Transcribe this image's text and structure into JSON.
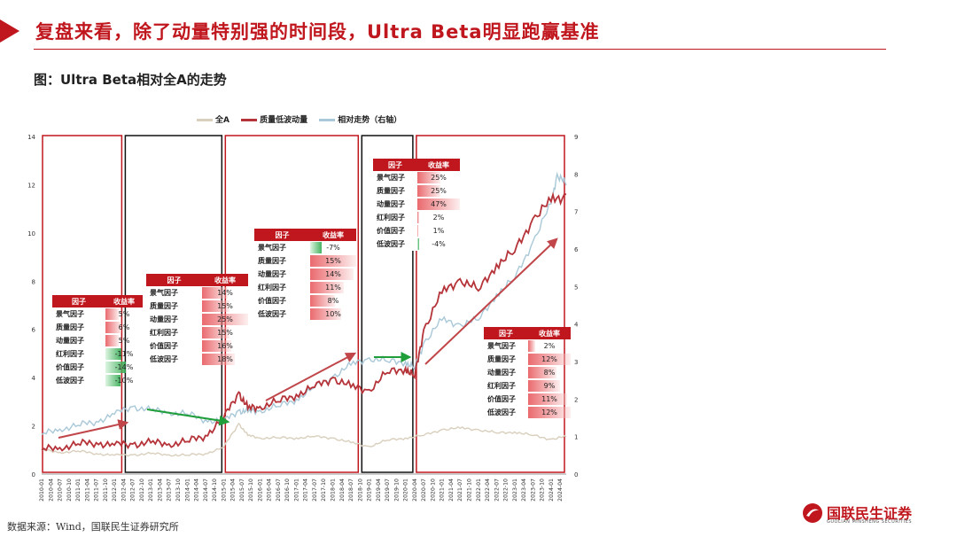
{
  "header": {
    "title": "复盘来看，除了动量特别强的时间段，Ultra Beta明显跑赢基准"
  },
  "figure": {
    "title": "图：Ultra Beta相对全A的走势"
  },
  "source": "数据来源：Wind，国联民生证券研究所",
  "logo": {
    "cn": "国联民生证券",
    "en": "GUOLIAN MINSHENG SECURITIES"
  },
  "colors": {
    "accent": "#c0161d",
    "quality": "#b5343a",
    "allA": "#d9cfbd",
    "relative": "#a9c8d8",
    "arrow_red": "#c0464a",
    "arrow_green": "#1f9e3a"
  },
  "chart_data": {
    "type": "line",
    "title": "",
    "series": [
      {
        "name": "全A",
        "axis": "left",
        "x": [
          "2010-01",
          "2010-07",
          "2011-01",
          "2011-07",
          "2012-01",
          "2012-07",
          "2013-01",
          "2013-07",
          "2014-01",
          "2014-07",
          "2015-01",
          "2015-06",
          "2015-09",
          "2016-01",
          "2016-07",
          "2017-01",
          "2017-07",
          "2018-01",
          "2018-07",
          "2019-01",
          "2019-07",
          "2020-01",
          "2020-07",
          "2021-01",
          "2021-07",
          "2022-01",
          "2022-07",
          "2023-01",
          "2023-07",
          "2024-01",
          "2024-06"
        ],
        "values": [
          1.0,
          0.9,
          0.95,
          0.85,
          0.78,
          0.8,
          0.85,
          0.8,
          0.78,
          0.85,
          1.1,
          2.1,
          1.6,
          1.5,
          1.5,
          1.5,
          1.55,
          1.5,
          1.3,
          1.15,
          1.4,
          1.5,
          1.6,
          1.85,
          1.9,
          1.85,
          1.7,
          1.75,
          1.6,
          1.45,
          1.55
        ]
      },
      {
        "name": "质量低波动量",
        "axis": "left",
        "x": [
          "2010-01",
          "2010-07",
          "2011-01",
          "2011-07",
          "2012-01",
          "2012-07",
          "2013-01",
          "2013-07",
          "2014-01",
          "2014-07",
          "2015-01",
          "2015-06",
          "2015-09",
          "2016-01",
          "2016-07",
          "2017-01",
          "2017-07",
          "2018-01",
          "2018-07",
          "2019-01",
          "2019-07",
          "2020-01",
          "2020-04",
          "2020-07",
          "2021-01",
          "2021-07",
          "2022-01",
          "2022-07",
          "2023-01",
          "2023-07",
          "2024-01",
          "2024-06"
        ],
        "values": [
          1.0,
          1.1,
          1.25,
          1.3,
          1.2,
          1.25,
          1.3,
          1.25,
          1.35,
          1.6,
          2.3,
          3.4,
          2.7,
          2.8,
          3.0,
          3.3,
          3.6,
          4.0,
          3.6,
          3.5,
          4.2,
          4.4,
          4.0,
          6.0,
          7.5,
          8.1,
          7.6,
          8.7,
          9.2,
          10.6,
          11.3,
          11.6
        ]
      },
      {
        "name": "相对走势（右轴）",
        "axis": "right",
        "x": [
          "2010-01",
          "2010-07",
          "2011-01",
          "2011-07",
          "2012-01",
          "2012-07",
          "2013-01",
          "2013-07",
          "2014-01",
          "2014-07",
          "2015-01",
          "2015-06",
          "2015-09",
          "2016-01",
          "2016-07",
          "2017-01",
          "2017-07",
          "2018-01",
          "2018-07",
          "2019-01",
          "2019-07",
          "2020-01",
          "2020-04",
          "2020-07",
          "2021-01",
          "2021-07",
          "2022-01",
          "2022-07",
          "2023-01",
          "2023-07",
          "2024-01",
          "2024-03",
          "2024-06"
        ],
        "values": [
          1.05,
          1.2,
          1.3,
          1.4,
          1.6,
          1.8,
          1.7,
          1.65,
          1.6,
          1.45,
          1.4,
          1.7,
          1.65,
          1.7,
          1.8,
          2.0,
          2.3,
          2.6,
          2.9,
          3.1,
          3.0,
          3.0,
          2.8,
          3.5,
          4.1,
          4.0,
          4.1,
          4.8,
          5.2,
          6.2,
          7.2,
          8.0,
          7.7
        ]
      }
    ],
    "yleft": {
      "min": 0,
      "max": 14,
      "ticks": [
        "0",
        "2",
        "4",
        "6",
        "8",
        "10",
        "12",
        "14"
      ]
    },
    "yright": {
      "min": 0,
      "max": 9,
      "ticks": [
        "0",
        "1",
        "2",
        "3",
        "4",
        "5",
        "6",
        "7",
        "8",
        "9"
      ]
    },
    "xticks": [
      "2010-01",
      "2010-04",
      "2010-07",
      "2010-10",
      "2011-01",
      "2011-04",
      "2011-07",
      "2011-10",
      "2012-01",
      "2012-04",
      "2012-07",
      "2012-10",
      "2013-01",
      "2013-04",
      "2013-07",
      "2013-10",
      "2014-01",
      "2014-04",
      "2014-07",
      "2014-10",
      "2015-01",
      "2015-04",
      "2015-07",
      "2015-10",
      "2016-01",
      "2016-04",
      "2016-07",
      "2016-10",
      "2017-01",
      "2017-04",
      "2017-07",
      "2017-10",
      "2018-01",
      "2018-04",
      "2018-07",
      "2018-10",
      "2019-01",
      "2019-04",
      "2019-07",
      "2019-10",
      "2020-01",
      "2020-04",
      "2020-07",
      "2020-10",
      "2021-01",
      "2021-04",
      "2021-07",
      "2021-10",
      "2022-01",
      "2022-04",
      "2022-07",
      "2022-10",
      "2023-01",
      "2023-04",
      "2023-07",
      "2023-10",
      "2024-01",
      "2024-04"
    ],
    "legend": {
      "position": "top",
      "entries": [
        "全A",
        "质量低波动量",
        "相对走势（右轴）"
      ]
    },
    "periods": [
      {
        "start": "2010-01",
        "end": "2012-04",
        "frame": "red"
      },
      {
        "start": "2012-04",
        "end": "2015-01",
        "frame": "black"
      },
      {
        "start": "2015-01",
        "end": "2018-10",
        "frame": "red"
      },
      {
        "start": "2018-10",
        "end": "2020-04",
        "frame": "black"
      },
      {
        "start": "2020-04",
        "end": "2024-06",
        "frame": "red"
      }
    ],
    "tables": [
      {
        "header": [
          "因子",
          "收益率"
        ],
        "rows": [
          [
            "景气因子",
            "5%"
          ],
          [
            "质量因子",
            "6%"
          ],
          [
            "动量因子",
            "5%"
          ],
          [
            "红利因子",
            "-11%"
          ],
          [
            "价值因子",
            "-14%"
          ],
          [
            "低波因子",
            "-10%"
          ]
        ]
      },
      {
        "header": [
          "因子",
          "收益率"
        ],
        "rows": [
          [
            "景气因子",
            "14%"
          ],
          [
            "质量因子",
            "15%"
          ],
          [
            "动量因子",
            "25%"
          ],
          [
            "红利因子",
            "15%"
          ],
          [
            "价值因子",
            "16%"
          ],
          [
            "低波因子",
            "18%"
          ]
        ]
      },
      {
        "header": [
          "因子",
          "收益率"
        ],
        "rows": [
          [
            "景气因子",
            "-7%"
          ],
          [
            "质量因子",
            "15%"
          ],
          [
            "动量因子",
            "14%"
          ],
          [
            "红利因子",
            "11%"
          ],
          [
            "价值因子",
            "8%"
          ],
          [
            "低波因子",
            "10%"
          ]
        ]
      },
      {
        "header": [
          "因子",
          "收益率"
        ],
        "rows": [
          [
            "景气因子",
            "25%"
          ],
          [
            "质量因子",
            "25%"
          ],
          [
            "动量因子",
            "47%"
          ],
          [
            "红利因子",
            "2%"
          ],
          [
            "价值因子",
            "1%"
          ],
          [
            "低波因子",
            "-4%"
          ]
        ]
      },
      {
        "header": [
          "因子",
          "收益率"
        ],
        "rows": [
          [
            "景气因子",
            "2%"
          ],
          [
            "质量因子",
            "12%"
          ],
          [
            "动量因子",
            "8%"
          ],
          [
            "红利因子",
            "9%"
          ],
          [
            "价值因子",
            "11%"
          ],
          [
            "低波因子",
            "12%"
          ]
        ]
      }
    ]
  }
}
